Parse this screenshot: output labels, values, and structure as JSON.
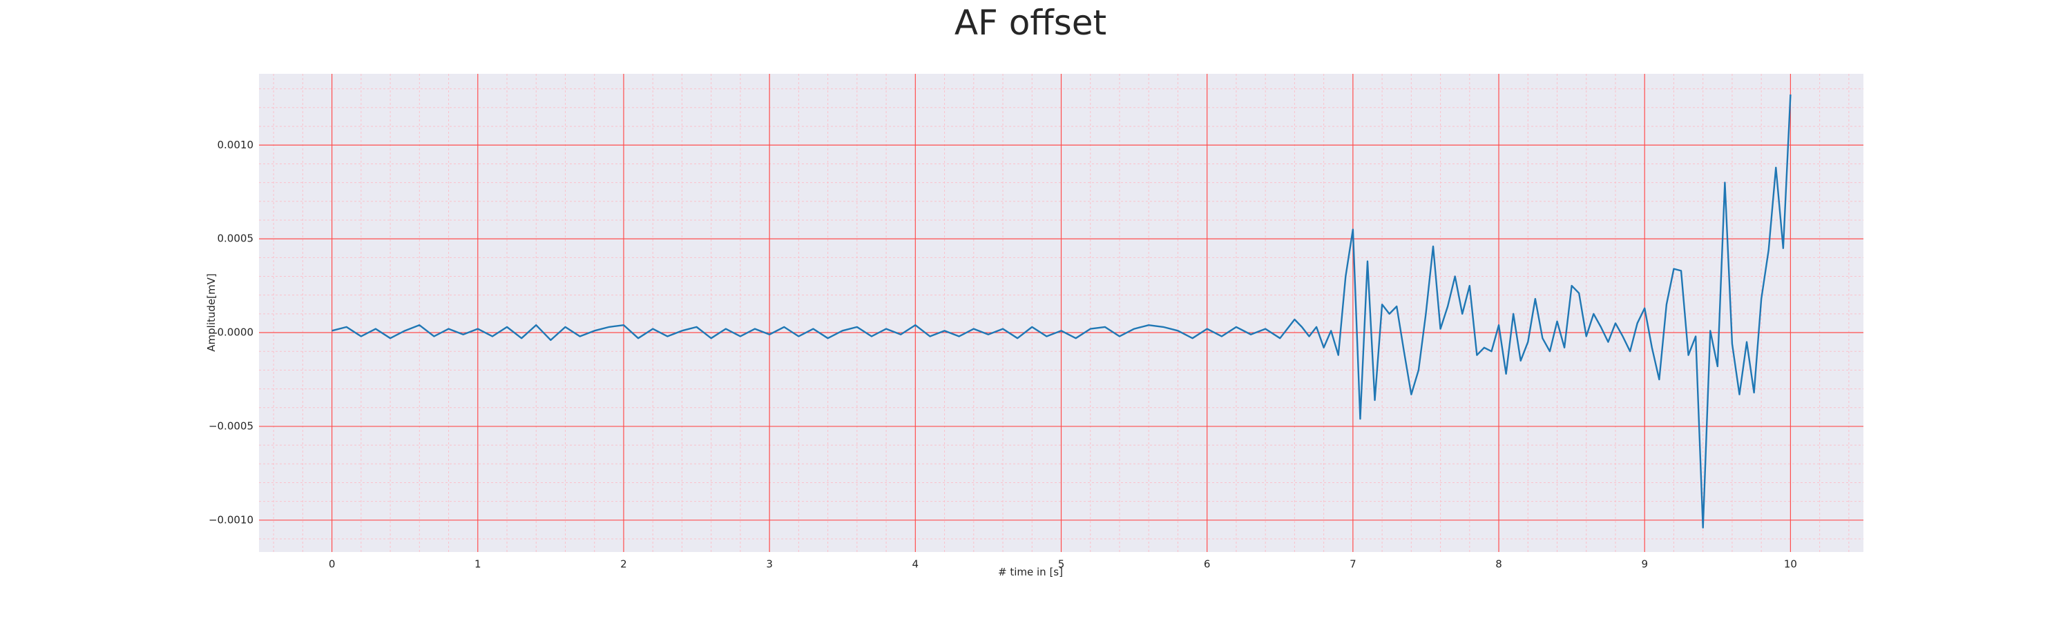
{
  "chart_data": {
    "type": "line",
    "title": "AF offset",
    "x_label": "# time in [s]",
    "y_label": "Amplitude[mV]",
    "xlim": [
      -0.5,
      10.5
    ],
    "ylim": [
      -0.00117,
      0.00138
    ],
    "xticks": [
      0,
      1,
      2,
      3,
      4,
      5,
      6,
      7,
      8,
      9,
      10
    ],
    "yticks": [
      {
        "value": -0.001,
        "label": "−0.0010"
      },
      {
        "value": -0.0005,
        "label": "−0.0005"
      },
      {
        "value": 0,
        "label": "0.0000"
      },
      {
        "value": 0.0005,
        "label": "0.0005"
      },
      {
        "value": 0.001,
        "label": "0.0010"
      }
    ],
    "grid": true,
    "color": "#1f77b4",
    "x": [
      0,
      0.1,
      0.2,
      0.3,
      0.4,
      0.5,
      0.6,
      0.7,
      0.8,
      0.9,
      1.0,
      1.1,
      1.2,
      1.3,
      1.4,
      1.5,
      1.6,
      1.7,
      1.8,
      1.9,
      2.0,
      2.1,
      2.2,
      2.3,
      2.4,
      2.5,
      2.6,
      2.7,
      2.8,
      2.9,
      3.0,
      3.1,
      3.2,
      3.3,
      3.4,
      3.5,
      3.6,
      3.7,
      3.8,
      3.9,
      4.0,
      4.1,
      4.2,
      4.3,
      4.4,
      4.5,
      4.6,
      4.7,
      4.8,
      4.9,
      5.0,
      5.1,
      5.2,
      5.3,
      5.4,
      5.5,
      5.6,
      5.7,
      5.8,
      5.9,
      6.0,
      6.1,
      6.2,
      6.3,
      6.4,
      6.5,
      6.55,
      6.6,
      6.65,
      6.7,
      6.75,
      6.8,
      6.85,
      6.9,
      6.95,
      7.0,
      7.05,
      7.1,
      7.15,
      7.2,
      7.25,
      7.3,
      7.35,
      7.4,
      7.45,
      7.5,
      7.55,
      7.6,
      7.65,
      7.7,
      7.75,
      7.8,
      7.85,
      7.9,
      7.95,
      8.0,
      8.05,
      8.1,
      8.15,
      8.2,
      8.25,
      8.3,
      8.35,
      8.4,
      8.45,
      8.5,
      8.55,
      8.6,
      8.65,
      8.7,
      8.75,
      8.8,
      8.85,
      8.9,
      8.95,
      9.0,
      9.05,
      9.1,
      9.15,
      9.2,
      9.25,
      9.3,
      9.35,
      9.4,
      9.45,
      9.5,
      9.55,
      9.6,
      9.65,
      9.7,
      9.75,
      9.8,
      9.85,
      9.9,
      9.95,
      10.0
    ],
    "values": [
      1e-05,
      3e-05,
      -2e-05,
      2e-05,
      -3e-05,
      1e-05,
      4e-05,
      -2e-05,
      2e-05,
      -1e-05,
      2e-05,
      -2e-05,
      3e-05,
      -3e-05,
      4e-05,
      -4e-05,
      3e-05,
      -2e-05,
      1e-05,
      3e-05,
      4e-05,
      -3e-05,
      2e-05,
      -2e-05,
      1e-05,
      3e-05,
      -3e-05,
      2e-05,
      -2e-05,
      2e-05,
      -1e-05,
      3e-05,
      -2e-05,
      2e-05,
      -3e-05,
      1e-05,
      3e-05,
      -2e-05,
      2e-05,
      -1e-05,
      4e-05,
      -2e-05,
      1e-05,
      -2e-05,
      2e-05,
      -1e-05,
      2e-05,
      -3e-05,
      3e-05,
      -2e-05,
      1e-05,
      -3e-05,
      2e-05,
      3e-05,
      -2e-05,
      2e-05,
      4e-05,
      3e-05,
      1e-05,
      -3e-05,
      2e-05,
      -2e-05,
      3e-05,
      -1e-05,
      2e-05,
      -3e-05,
      2e-05,
      7e-05,
      3e-05,
      -2e-05,
      3e-05,
      -8e-05,
      1e-05,
      -0.00012,
      0.0003,
      0.00055,
      -0.00046,
      0.00038,
      -0.00036,
      0.00015,
      0.0001,
      0.00014,
      -0.0001,
      -0.00033,
      -0.0002,
      0.0001,
      0.00046,
      2e-05,
      0.00014,
      0.0003,
      0.0001,
      0.00025,
      -0.00012,
      -8e-05,
      -0.0001,
      4e-05,
      -0.00022,
      0.0001,
      -0.00015,
      -5e-05,
      0.00018,
      -3e-05,
      -0.0001,
      6e-05,
      -8e-05,
      0.00025,
      0.00021,
      -2e-05,
      0.0001,
      3e-05,
      -5e-05,
      5e-05,
      -2e-05,
      -0.0001,
      5e-05,
      0.00013,
      -8e-05,
      -0.00025,
      0.00015,
      0.00034,
      0.00033,
      -0.00012,
      -2e-05,
      -0.00104,
      1e-05,
      -0.00018,
      0.0008,
      -6e-05,
      -0.00033,
      -5e-05,
      -0.00032,
      0.00018,
      0.00044,
      0.00088,
      0.00045,
      0.00127
    ]
  }
}
